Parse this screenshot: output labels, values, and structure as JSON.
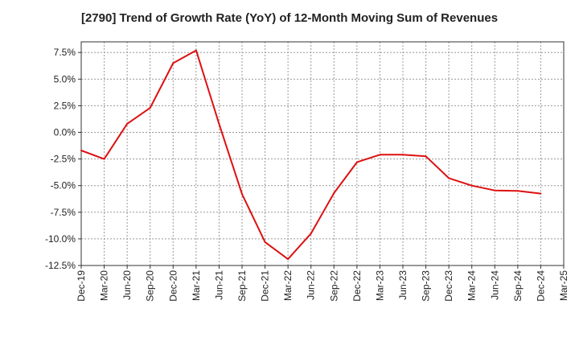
{
  "chart_data": {
    "type": "line",
    "title": "[2790]  Trend of Growth Rate (YoY) of 12-Month Moving Sum of Revenues",
    "xlabel": "",
    "ylabel": "",
    "x_tick_labels": [
      "Dec-19",
      "Mar-20",
      "Jun-20",
      "Sep-20",
      "Dec-20",
      "Mar-21",
      "Jun-21",
      "Sep-21",
      "Dec-21",
      "Mar-22",
      "Jun-22",
      "Sep-22",
      "Dec-22",
      "Mar-23",
      "Jun-23",
      "Sep-23",
      "Dec-23",
      "Mar-24",
      "Jun-24",
      "Sep-24",
      "Dec-24",
      "Mar-25"
    ],
    "y_tick_values": [
      7.5,
      5.0,
      2.5,
      0.0,
      -2.5,
      -5.0,
      -7.5,
      -10.0,
      -12.5
    ],
    "y_tick_labels": [
      "7.5%",
      "5.0%",
      "2.5%",
      "0.0%",
      "-2.5%",
      "-5.0%",
      "-7.5%",
      "-10.0%",
      "-12.5%"
    ],
    "ylim": [
      -12.5,
      8.5
    ],
    "grid": true,
    "line_color": "#dd1111",
    "series": [
      {
        "x": [
          "Dec-19",
          "Mar-20",
          "Jun-20",
          "Sep-20",
          "Dec-20",
          "Mar-21",
          "Jun-21",
          "Sep-21",
          "Dec-21",
          "Mar-22",
          "Jun-22",
          "Sep-22",
          "Dec-22",
          "Mar-23",
          "Jun-23",
          "Sep-23",
          "Dec-23",
          "Mar-24",
          "Jun-24",
          "Sep-24",
          "Dec-24"
        ],
        "values": [
          -1.7,
          -2.5,
          0.8,
          2.3,
          6.5,
          7.7,
          0.8,
          -5.8,
          -10.3,
          -11.9,
          -9.5,
          -5.7,
          -2.8,
          -2.1,
          -2.1,
          -2.25,
          -4.3,
          -5.0,
          -5.45,
          -5.5,
          -5.75
        ]
      }
    ]
  }
}
